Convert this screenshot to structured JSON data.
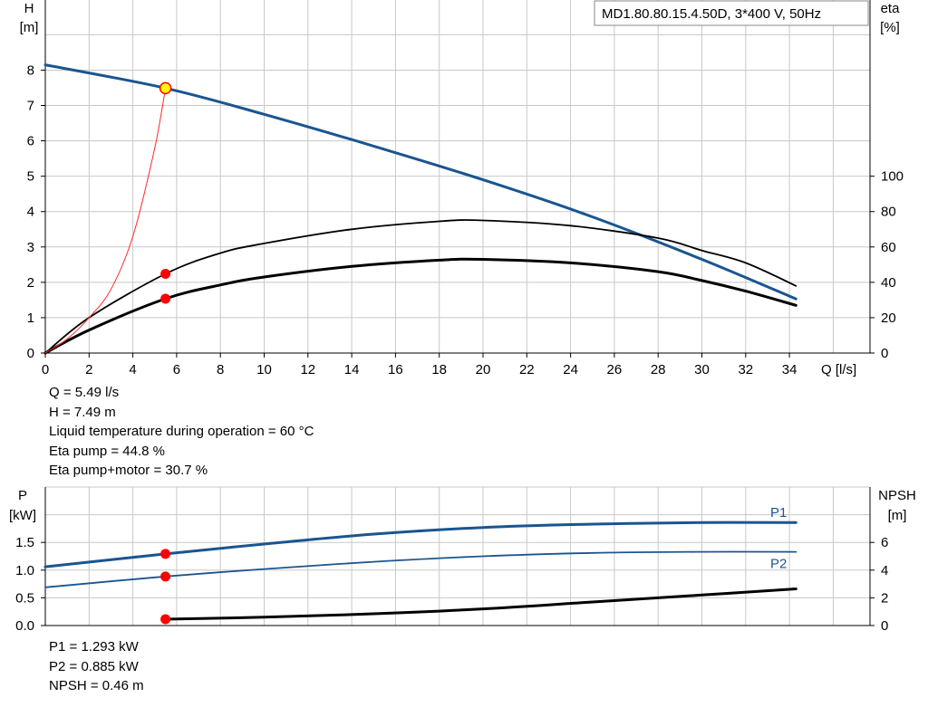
{
  "colors": {
    "blue": "#1a5590",
    "black": "#000000",
    "grid": "#c8c8c8",
    "marker_red": "#ff0000",
    "marker_yellow": "#ffff00",
    "red_line": "#ff2a2a"
  },
  "chart_data": [
    {
      "type": "line",
      "title": "MD1.80.80.15.4.50D, 3*400 V, 50Hz",
      "xlabel": "Q [l/s]",
      "ylabel": "H\n[m]",
      "ylabel_right": "eta\n[%]",
      "xlim": [
        0,
        36
      ],
      "ylim": [
        0,
        9.5
      ],
      "ylim_right": [
        0,
        190
      ],
      "x_ticks": [
        "0",
        "2",
        "4",
        "6",
        "8",
        "10",
        "12",
        "14",
        "16",
        "18",
        "20",
        "22",
        "24",
        "26",
        "28",
        "30",
        "32",
        "34"
      ],
      "y_ticks": [
        "0",
        "1",
        "2",
        "3",
        "4",
        "5",
        "6",
        "7",
        "8"
      ],
      "y_right_ticks": [
        "0",
        "20",
        "40",
        "60",
        "80",
        "100"
      ],
      "grid": true,
      "series": [
        {
          "key": "H",
          "axis": "left",
          "color": "#1a5590",
          "x": [
            0,
            5.49,
            10,
            15,
            20,
            25,
            30,
            34.3
          ],
          "y": [
            8.15,
            7.49,
            6.75,
            5.85,
            4.9,
            3.85,
            2.65,
            1.53
          ]
        },
        {
          "key": "eta_pump",
          "axis": "right",
          "color": "#000000",
          "x": [
            0,
            2,
            5.49,
            8,
            10,
            14,
            18,
            20,
            24,
            28,
            30,
            32,
            34.3
          ],
          "y": [
            0,
            20,
            44.8,
            56.5,
            62,
            70,
            74.5,
            75,
            72,
            65,
            58,
            51,
            38
          ]
        },
        {
          "key": "eta_pump_motor",
          "axis": "right",
          "color": "#000000",
          "x": [
            0,
            2,
            5.49,
            8,
            10,
            14,
            18,
            20,
            24,
            28,
            30,
            32,
            34.3
          ],
          "y": [
            0,
            13,
            30.7,
            38.5,
            43,
            49,
            52.5,
            53,
            51,
            46,
            41,
            35,
            27
          ]
        },
        {
          "key": "system_curve",
          "axis": "left",
          "color": "#ff2a2a",
          "x": [
            0,
            1,
            2,
            3,
            4,
            5,
            5.49
          ],
          "y": [
            0,
            0.4,
            1.0,
            1.8,
            3.3,
            5.8,
            7.49
          ]
        }
      ],
      "markers": [
        {
          "axis": "left",
          "x": 5.49,
          "y": 7.49,
          "style": "yellow"
        },
        {
          "axis": "right",
          "x": 5.49,
          "y": 44.8,
          "style": "red"
        },
        {
          "axis": "right",
          "x": 5.49,
          "y": 30.7,
          "style": "red"
        }
      ]
    },
    {
      "type": "line",
      "xlabel": "",
      "ylabel": "P\n[kW]",
      "ylabel_right": "NPSH\n[m]",
      "xlim": [
        0,
        36
      ],
      "ylim": [
        0,
        2.0
      ],
      "ylim_right": [
        0,
        8
      ],
      "y_ticks": [
        "0.0",
        "0.5",
        "1.0",
        "1.5"
      ],
      "y_right_ticks": [
        "0",
        "2",
        "4",
        "6"
      ],
      "grid": true,
      "series": [
        {
          "key": "P1",
          "name": "P1",
          "axis": "left",
          "color": "#1a5590",
          "x": [
            0,
            5.49,
            10,
            15,
            20,
            25,
            30,
            34.3
          ],
          "y": [
            1.06,
            1.293,
            1.47,
            1.65,
            1.77,
            1.83,
            1.86,
            1.86
          ]
        },
        {
          "key": "P2",
          "name": "P2",
          "axis": "left",
          "color": "#1a5590",
          "x": [
            0,
            5.49,
            10,
            15,
            20,
            25,
            30,
            34.3
          ],
          "y": [
            0.69,
            0.885,
            1.02,
            1.15,
            1.25,
            1.31,
            1.33,
            1.33
          ]
        },
        {
          "key": "NPSH",
          "axis": "right",
          "color": "#000000",
          "x": [
            5.49,
            10,
            15,
            20,
            25,
            30,
            34.3
          ],
          "y": [
            0.46,
            0.6,
            0.85,
            1.2,
            1.7,
            2.2,
            2.65
          ]
        }
      ],
      "markers": [
        {
          "axis": "left",
          "x": 5.49,
          "y": 1.293,
          "style": "red"
        },
        {
          "axis": "left",
          "x": 5.49,
          "y": 0.885,
          "style": "red"
        },
        {
          "axis": "right",
          "x": 5.49,
          "y": 0.46,
          "style": "red"
        }
      ]
    }
  ],
  "info_top": {
    "q": "Q = 5.49 l/s",
    "h": "H = 7.49 m",
    "temp": "Liquid temperature during operation = 60 °C",
    "eta_pump": "Eta pump = 44.8 %",
    "eta_pump_motor": "Eta pump+motor = 30.7 %"
  },
  "info_bottom": {
    "p1": "P1 = 1.293 kW",
    "p2": "P2 = 0.885 kW",
    "npsh": "NPSH = 0.46 m"
  }
}
